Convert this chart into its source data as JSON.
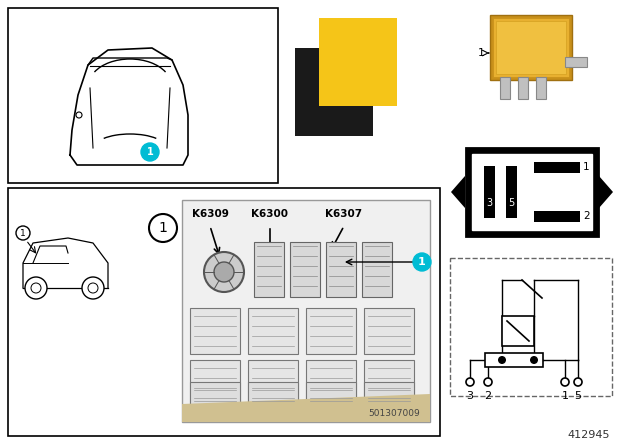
{
  "bg_color": "#ffffff",
  "border_color": "#000000",
  "teal_color": "#00BCD4",
  "yellow_color": "#F5C518",
  "dark_gray": "#333333",
  "light_gray": "#cccccc",
  "title_number": "412945",
  "fuse_box_code": "501307009",
  "relay_labels": [
    "K6309",
    "K6300",
    "K6307"
  ],
  "pin_labels": [
    "3",
    "2",
    "1",
    "5"
  ],
  "part_number": "1"
}
